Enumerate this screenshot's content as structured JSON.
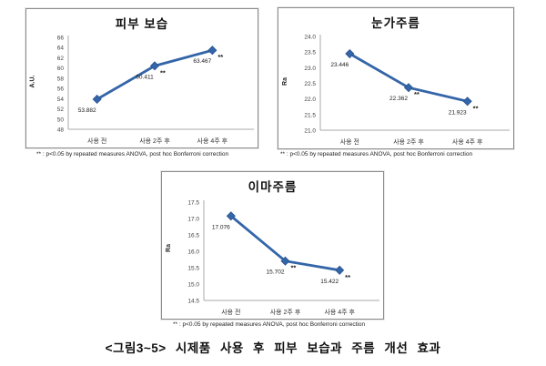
{
  "colors": {
    "line": "#3465a8",
    "marker_edge": "#2a5490",
    "axis": "#a8a8a8"
  },
  "caption": "<그림3~5> 시제품 사용 후 피부 보습과 주름 개선 효과",
  "chart_data": [
    {
      "type": "line",
      "title": "피부 보습",
      "ylabel": "A.U.",
      "categories": [
        "사용 전",
        "사용 2주 후",
        "사용 4주 후"
      ],
      "values": [
        53.882,
        60.411,
        63.467
      ],
      "point_labels": [
        "53.882",
        "60.411",
        "63.467"
      ],
      "significance": [
        "",
        "**",
        "**"
      ],
      "ylim": [
        48,
        66
      ],
      "ytick_step": 2,
      "ytick_decimals": 0,
      "grid": false,
      "legend": "none",
      "footnote": "** : p<0.05 by repeated measures ANOVA, post hoc Bonferroni correction"
    },
    {
      "type": "line",
      "title": "눈가주름",
      "ylabel": "Ra",
      "categories": [
        "사용 전",
        "사용 2주 후",
        "사용 4주 후"
      ],
      "values": [
        23.446,
        22.362,
        21.923
      ],
      "point_labels": [
        "23.446",
        "22.362",
        "21.923"
      ],
      "significance": [
        "",
        "**",
        "**"
      ],
      "ylim": [
        21.0,
        24.0
      ],
      "ytick_step": 0.5,
      "ytick_decimals": 1,
      "grid": false,
      "legend": "none",
      "footnote": "** : p<0.05 by repeated measures ANOVA, post hoc Bonferroni correction"
    },
    {
      "type": "line",
      "title": "이마주름",
      "ylabel": "Ra",
      "categories": [
        "사용 전",
        "사용 2주 후",
        "사용 4주 후"
      ],
      "values": [
        17.076,
        15.702,
        15.422
      ],
      "point_labels": [
        "17.076",
        "15.702",
        "15.422"
      ],
      "significance": [
        "",
        "**",
        "**"
      ],
      "ylim": [
        14.5,
        17.5
      ],
      "ytick_step": 0.5,
      "ytick_decimals": 1,
      "grid": false,
      "legend": "none",
      "footnote": "** : p<0.05 by repeated measures ANOVA, post hoc Bonferroni correction"
    }
  ]
}
